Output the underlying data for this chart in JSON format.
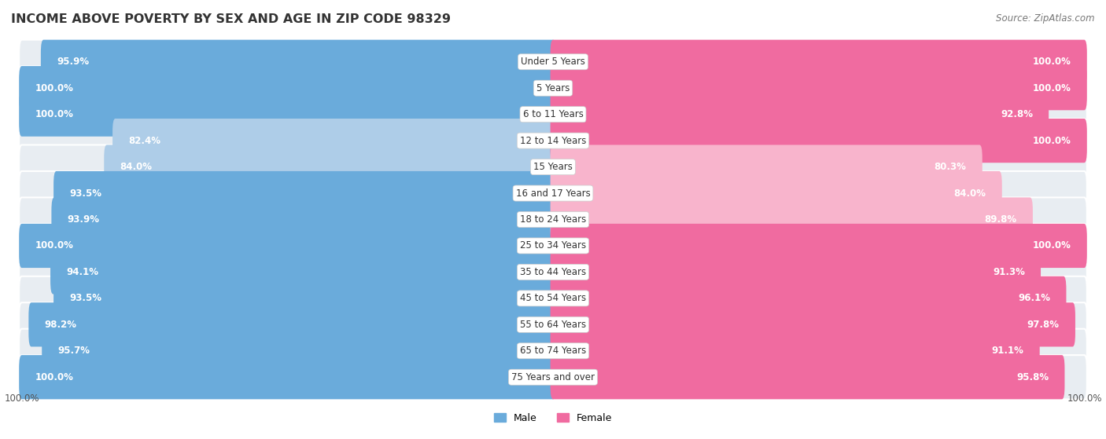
{
  "title": "INCOME ABOVE POVERTY BY SEX AND AGE IN ZIP CODE 98329",
  "source": "Source: ZipAtlas.com",
  "categories": [
    "Under 5 Years",
    "5 Years",
    "6 to 11 Years",
    "12 to 14 Years",
    "15 Years",
    "16 and 17 Years",
    "18 to 24 Years",
    "25 to 34 Years",
    "35 to 44 Years",
    "45 to 54 Years",
    "55 to 64 Years",
    "65 to 74 Years",
    "75 Years and over"
  ],
  "male_values": [
    95.9,
    100.0,
    100.0,
    82.4,
    84.0,
    93.5,
    93.9,
    100.0,
    94.1,
    93.5,
    98.2,
    95.7,
    100.0
  ],
  "female_values": [
    100.0,
    100.0,
    92.8,
    100.0,
    80.3,
    84.0,
    89.8,
    100.0,
    91.3,
    96.1,
    97.8,
    91.1,
    95.8
  ],
  "male_color": "#6aabdb",
  "female_color": "#f06ba0",
  "male_color_light": "#aecde8",
  "female_color_light": "#f8b4cc",
  "male_label": "Male",
  "female_label": "Female",
  "background_color": "#ffffff",
  "row_bg_color": "#e8edf2",
  "title_fontsize": 11.5,
  "value_fontsize": 8.5,
  "cat_fontsize": 8.5,
  "source_fontsize": 8.5,
  "legend_fontsize": 9,
  "max_value": 100.0,
  "x_axis_label": "100.0%"
}
